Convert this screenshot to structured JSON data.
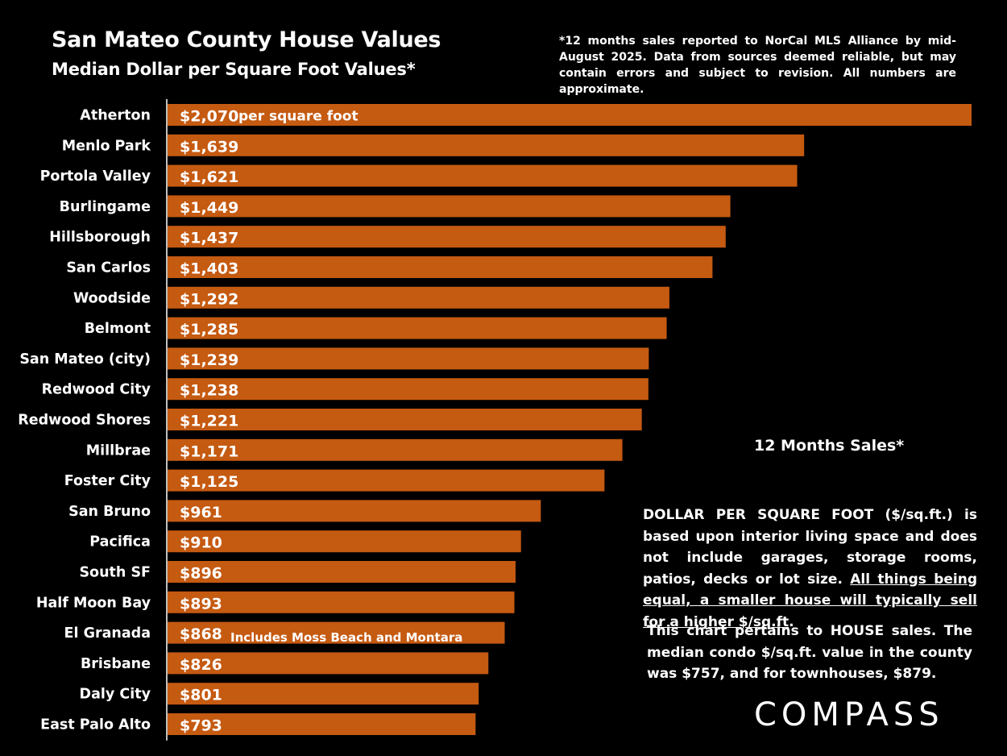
{
  "header": {
    "title": "San Mateo County House Values",
    "subtitle": "Median Dollar per Square Foot Values*"
  },
  "footnote": "*12 months sales reported to NorCal MLS Alliance by mid-August 2025. Data from sources deemed reliable, but may contain errors and subject to revision. All numbers are approximate.",
  "annotations": {
    "months_label": "12 Months Sales*",
    "definition_plain": "DOLLAR PER SQUARE FOOT ($/sq.ft.) is based upon interior living space and does not include garages, storage rooms, patios, decks or lot size.",
    "definition_underlined": "All things being equal, a smaller house will typically  sell for a higher $/sq.ft",
    "definition_end": ".",
    "note": "This chart pertains to HOUSE sales. The median condo $/sq.ft. value in the county was $757, and for townhouses, $879."
  },
  "logo": {
    "text": "COMPASS"
  },
  "chart_data": {
    "type": "bar",
    "orientation": "horizontal",
    "title": "San Mateo County House Values",
    "subtitle": "Median Dollar per Square Foot Values*",
    "xlim": [
      0,
      2070
    ],
    "bar_color": "#C55A11",
    "categories": [
      "Atherton",
      "Menlo Park",
      "Portola Valley",
      "Burlingame",
      "Hillsborough",
      "San Carlos",
      "Woodside",
      "Belmont",
      "San Mateo (city)",
      "Redwood City",
      "Redwood Shores",
      "Millbrae",
      "Foster City",
      "San Bruno",
      "Pacifica",
      "South SF",
      "Half Moon Bay",
      "El Granada",
      "Brisbane",
      "Daly City",
      "East Palo Alto"
    ],
    "values": [
      2070,
      1639,
      1621,
      1449,
      1437,
      1403,
      1292,
      1285,
      1239,
      1238,
      1221,
      1171,
      1125,
      961,
      910,
      896,
      893,
      868,
      826,
      801,
      793
    ],
    "labels": [
      "$2,070",
      "$1,639",
      "$1,621",
      "$1,449",
      "$1,437",
      "$1,403",
      "$1,292",
      "$1,285",
      "$1,239",
      "$1,238",
      "$1,221",
      "$1,171",
      "$1,125",
      "$961",
      "$910",
      "$896",
      "$893",
      "$868",
      "$826",
      "$801",
      "$793"
    ],
    "bar_annotations": [
      {
        "category": "Atherton",
        "text": "per square foot"
      },
      {
        "category": "El Granada",
        "text": "Includes Moss Beach and Montara"
      }
    ]
  }
}
